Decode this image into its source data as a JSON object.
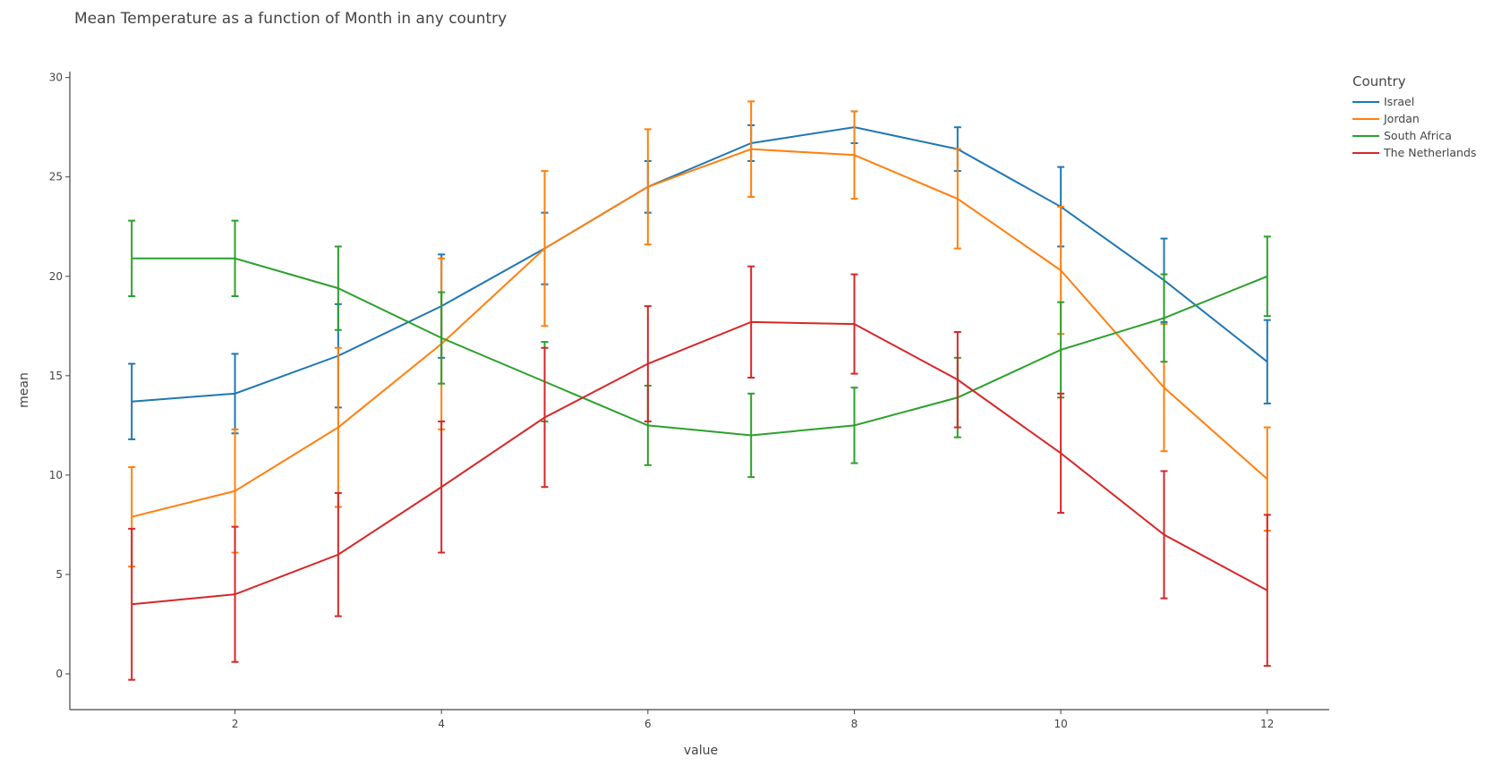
{
  "title": "Mean Temperature as a function of Month in any country",
  "chart_data": {
    "type": "line",
    "title": "Mean Temperature as a function of Month in any country",
    "xlabel": "value",
    "ylabel": "mean",
    "x": [
      1,
      2,
      3,
      4,
      5,
      6,
      7,
      8,
      9,
      10,
      11,
      12
    ],
    "xticks": [
      "2",
      "4",
      "6",
      "8",
      "10",
      "12"
    ],
    "yticks": [
      "0",
      "5",
      "10",
      "15",
      "20",
      "25",
      "30"
    ],
    "xlim": [
      0.4,
      12.6
    ],
    "ylim": [
      -1.8,
      30.3
    ],
    "grid": false,
    "legend_title": "Country",
    "legend_position": "top-right",
    "error_bars": true,
    "series": [
      {
        "name": "Israel",
        "color": "#1f77b4",
        "values": [
          13.7,
          14.1,
          16.0,
          18.5,
          21.4,
          24.5,
          26.7,
          27.5,
          26.4,
          23.5,
          19.8,
          15.7
        ],
        "error": [
          1.9,
          2.0,
          2.6,
          2.6,
          1.8,
          1.3,
          0.9,
          0.8,
          1.1,
          2.0,
          2.1,
          2.1
        ]
      },
      {
        "name": "Jordan",
        "color": "#ff7f0e",
        "values": [
          7.9,
          9.2,
          12.4,
          16.6,
          21.4,
          24.5,
          26.4,
          26.1,
          23.9,
          20.3,
          14.4,
          9.8
        ],
        "error": [
          2.5,
          3.1,
          4.0,
          4.3,
          3.9,
          2.9,
          2.4,
          2.2,
          2.5,
          3.2,
          3.2,
          2.6
        ]
      },
      {
        "name": "South Africa",
        "color": "#2ca02c",
        "values": [
          20.9,
          20.9,
          19.4,
          16.9,
          14.7,
          12.5,
          12.0,
          12.5,
          13.9,
          16.3,
          17.9,
          20.0
        ],
        "error": [
          1.9,
          1.9,
          2.1,
          2.3,
          2.0,
          2.0,
          2.1,
          1.9,
          2.0,
          2.4,
          2.2,
          2.0
        ]
      },
      {
        "name": "The Netherlands",
        "color": "#d62728",
        "values": [
          3.5,
          4.0,
          6.0,
          9.4,
          12.9,
          15.6,
          17.7,
          17.6,
          14.8,
          11.1,
          7.0,
          4.2
        ],
        "error": [
          3.8,
          3.4,
          3.1,
          3.3,
          3.5,
          2.9,
          2.8,
          2.5,
          2.4,
          3.0,
          3.2,
          3.8
        ]
      }
    ]
  }
}
